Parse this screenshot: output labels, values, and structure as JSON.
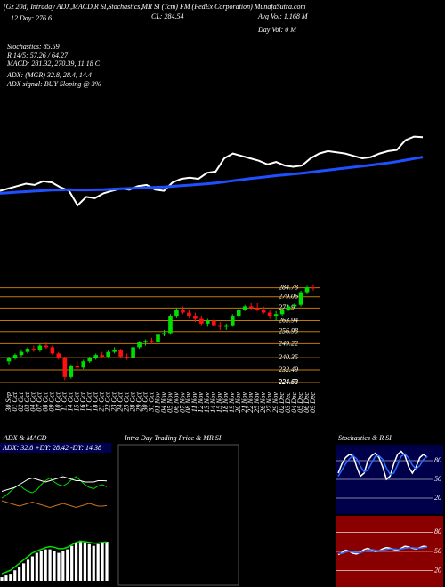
{
  "chart_data": [
    {
      "type": "candlestick",
      "annotations": [
        "(Gz 20d) Intraday ADX,MACD,R SI,Stochastics,MR SI (Tcm) FM (FedEx Corporation) MunafaSutra.com",
        "12 Day: 276.6",
        "CL: 284.54",
        "Avg Vol: 1.168 M",
        "Day Vol: 0 M",
        "Stochastics: 85.59",
        "R 14/5: 57.26 / 64.27",
        "MACD: 281.32, 270.39, 11.18 C",
        "ADX: (MGR) 32.8, 28.4, 14.4",
        "ADX signal: BUY Sloping @ 3%"
      ],
      "x": [
        "30 Sep",
        "01 Oct",
        "02 Oct",
        "03 Oct",
        "04 Oct",
        "07 Oct",
        "08 Oct",
        "09 Oct",
        "10 Oct",
        "11 Oct",
        "14 Oct",
        "15 Oct",
        "16 Oct",
        "17 Oct",
        "18 Oct",
        "21 Oct",
        "22 Oct",
        "23 Oct",
        "24 Oct",
        "25 Oct",
        "28 Oct",
        "29 Oct",
        "30 Oct",
        "31 Oct",
        "01 Nov",
        "04 Nov",
        "05 Nov",
        "06 Nov",
        "07 Nov",
        "08 Nov",
        "11 Nov",
        "12 Nov",
        "13 Nov",
        "14 Nov",
        "15 Nov",
        "18 Nov",
        "19 Nov",
        "20 Nov",
        "21 Nov",
        "22 Nov",
        "25 Nov",
        "26 Nov",
        "27 Nov",
        "29 Nov",
        "02 Dec",
        "03 Dec",
        "04 Dec",
        "05 Dec",
        "06 Dec",
        "09 Dec"
      ],
      "open": [
        238,
        240,
        242,
        244,
        246,
        245,
        248,
        247,
        243,
        240,
        228,
        235,
        234,
        238,
        240,
        242,
        241,
        244,
        245,
        241,
        240,
        247,
        250,
        251,
        250,
        255,
        256,
        267,
        271,
        269,
        267,
        265,
        262,
        264,
        261,
        260,
        261,
        267,
        271,
        273,
        272,
        271,
        269,
        267,
        268,
        271,
        273,
        274,
        282,
        285
      ],
      "high": [
        241,
        243,
        245,
        247,
        248,
        249,
        250,
        248,
        244,
        241,
        236,
        238,
        239,
        241,
        243,
        244,
        245,
        247,
        246,
        243,
        248,
        251,
        252,
        253,
        256,
        258,
        268,
        272,
        273,
        271,
        269,
        267,
        265,
        266,
        263,
        262,
        268,
        272,
        274,
        275,
        275,
        273,
        271,
        270,
        272,
        274,
        275,
        283,
        286,
        287
      ],
      "low": [
        236,
        239,
        241,
        243,
        244,
        244,
        246,
        242,
        239,
        226,
        227,
        232,
        233,
        237,
        239,
        240,
        240,
        243,
        240,
        239,
        240,
        246,
        248,
        249,
        249,
        254,
        255,
        266,
        268,
        266,
        263,
        261,
        260,
        260,
        258,
        258,
        260,
        266,
        270,
        271,
        270,
        268,
        265,
        264,
        267,
        270,
        272,
        273,
        281,
        283
      ],
      "close": [
        240,
        242,
        244,
        246,
        245,
        248,
        247,
        243,
        240,
        228,
        235,
        234,
        238,
        240,
        242,
        241,
        244,
        245,
        241,
        240,
        247,
        250,
        251,
        250,
        255,
        256,
        267,
        271,
        269,
        267,
        265,
        262,
        264,
        261,
        260,
        261,
        267,
        271,
        273,
        272,
        271,
        269,
        267,
        268,
        271,
        273,
        274,
        282,
        285,
        284.54
      ],
      "up_color": "#00e000",
      "down_color": "#ff1010",
      "ylim": [
        220,
        288
      ],
      "yticks": [
        284.78,
        279.06,
        271.9,
        263.94,
        256.98,
        249.22,
        240.35,
        232.49,
        224.63,
        224.53
      ],
      "grid": true,
      "grid_color": "#c07a00",
      "overlay": {
        "ylim": [
          225,
          295
        ],
        "close_color": "#ffffff",
        "series": [
          {
            "color": "#1e50ff",
            "values": [
              238,
              238.5,
              239,
              239.4,
              239.8,
              240.2,
              240.6,
              240.8,
              241,
              240.8,
              240.8,
              240.9,
              241.1,
              241.4,
              241.7,
              242,
              242.3,
              242.7,
              243,
              243.3,
              243.8,
              244.3,
              244.8,
              245.3,
              245.9,
              246.6,
              247.5,
              248.4,
              249.3,
              250.2,
              251,
              251.8,
              252.6,
              253.3,
              254,
              254.7,
              255.5,
              256.4,
              257.3,
              258.1,
              258.9,
              259.7,
              260.5,
              261.4,
              262.3,
              263.2,
              264.3,
              265.5,
              266.8,
              268
            ]
          }
        ]
      }
    },
    {
      "type": "line",
      "title": "ADX & MACD",
      "subtitle": "ADX: 32.8 +DY: 28.42 -DY: 14.38",
      "ylim": [
        0,
        50
      ],
      "series": [
        {
          "color": "#00e000",
          "values": [
            20,
            22,
            25,
            28,
            30,
            27,
            25,
            24,
            26,
            30,
            33,
            35,
            32,
            30,
            29,
            31,
            34,
            36,
            33,
            30,
            28,
            27,
            29,
            30,
            28.42
          ]
        },
        {
          "color": "#c8731a",
          "values": [
            18,
            17,
            16,
            15,
            14,
            15,
            16,
            17,
            16,
            15,
            14,
            13,
            14,
            15,
            16,
            15,
            14,
            13,
            14,
            15,
            16,
            15,
            14,
            14,
            14.38
          ]
        },
        {
          "color": "#ffffff",
          "values": [
            25,
            26,
            27,
            28,
            30,
            32,
            34,
            35,
            34,
            33,
            32,
            33,
            34,
            35,
            36,
            35,
            34,
            33,
            33,
            32,
            32,
            32,
            33,
            33,
            32.8
          ]
        }
      ],
      "macd": {
        "type": "bar",
        "ylim": [
          0,
          14
        ],
        "color": "#ffffff",
        "values": [
          1,
          1.5,
          2,
          3,
          4,
          5,
          6,
          7,
          8,
          8.5,
          9,
          9,
          8.5,
          8,
          8.5,
          9,
          10,
          11,
          11.5,
          11,
          10.5,
          10,
          10.5,
          11,
          11.18
        ],
        "signal": {
          "color": "#00e000",
          "values": [
            2,
            2.5,
            3,
            4,
            5,
            6,
            7,
            8,
            8.5,
            9,
            9.5,
            9.8,
            9.6,
            9.2,
            9.2,
            9.6,
            10.3,
            11,
            11.3,
            11.2,
            11,
            10.8,
            10.8,
            11,
            11.1
          ]
        }
      }
    },
    {
      "type": "line",
      "title": "Intra Day Trading Price & MR SI"
    },
    {
      "type": "line",
      "title": "Stochastics & R SI",
      "ylim": [
        0,
        100
      ],
      "yticks": [
        20,
        50,
        80
      ],
      "background": "#00004a",
      "series": [
        {
          "color": "#ffffff",
          "values": [
            60,
            75,
            85,
            90,
            88,
            70,
            55,
            60,
            80,
            88,
            92,
            85,
            70,
            50,
            55,
            75,
            90,
            95,
            88,
            70,
            60,
            70,
            85,
            90,
            85.59
          ]
        },
        {
          "color": "#2a6cff",
          "values": [
            55,
            65,
            75,
            83,
            88,
            83,
            71,
            62,
            65,
            76,
            87,
            88,
            82,
            68,
            58,
            60,
            73,
            87,
            91,
            84,
            73,
            67,
            72,
            82,
            87
          ]
        }
      ]
    },
    {
      "type": "line",
      "ylim": [
        0,
        100
      ],
      "yticks": [
        20,
        50,
        80
      ],
      "background": "#8a0000",
      "series": [
        {
          "color": "#ffffff",
          "values": [
            45,
            48,
            52,
            50,
            47,
            46,
            49,
            53,
            55,
            52,
            50,
            51,
            54,
            56,
            55,
            53,
            52,
            55,
            58,
            57,
            55,
            54,
            56,
            58,
            57.26
          ]
        },
        {
          "color": "#2a6cff",
          "values": [
            47,
            47,
            49,
            50,
            49,
            48,
            48,
            50,
            52,
            53,
            52,
            51,
            52,
            53,
            54,
            54,
            53,
            54,
            55,
            56,
            56,
            55,
            55,
            56,
            57
          ]
        }
      ]
    }
  ]
}
